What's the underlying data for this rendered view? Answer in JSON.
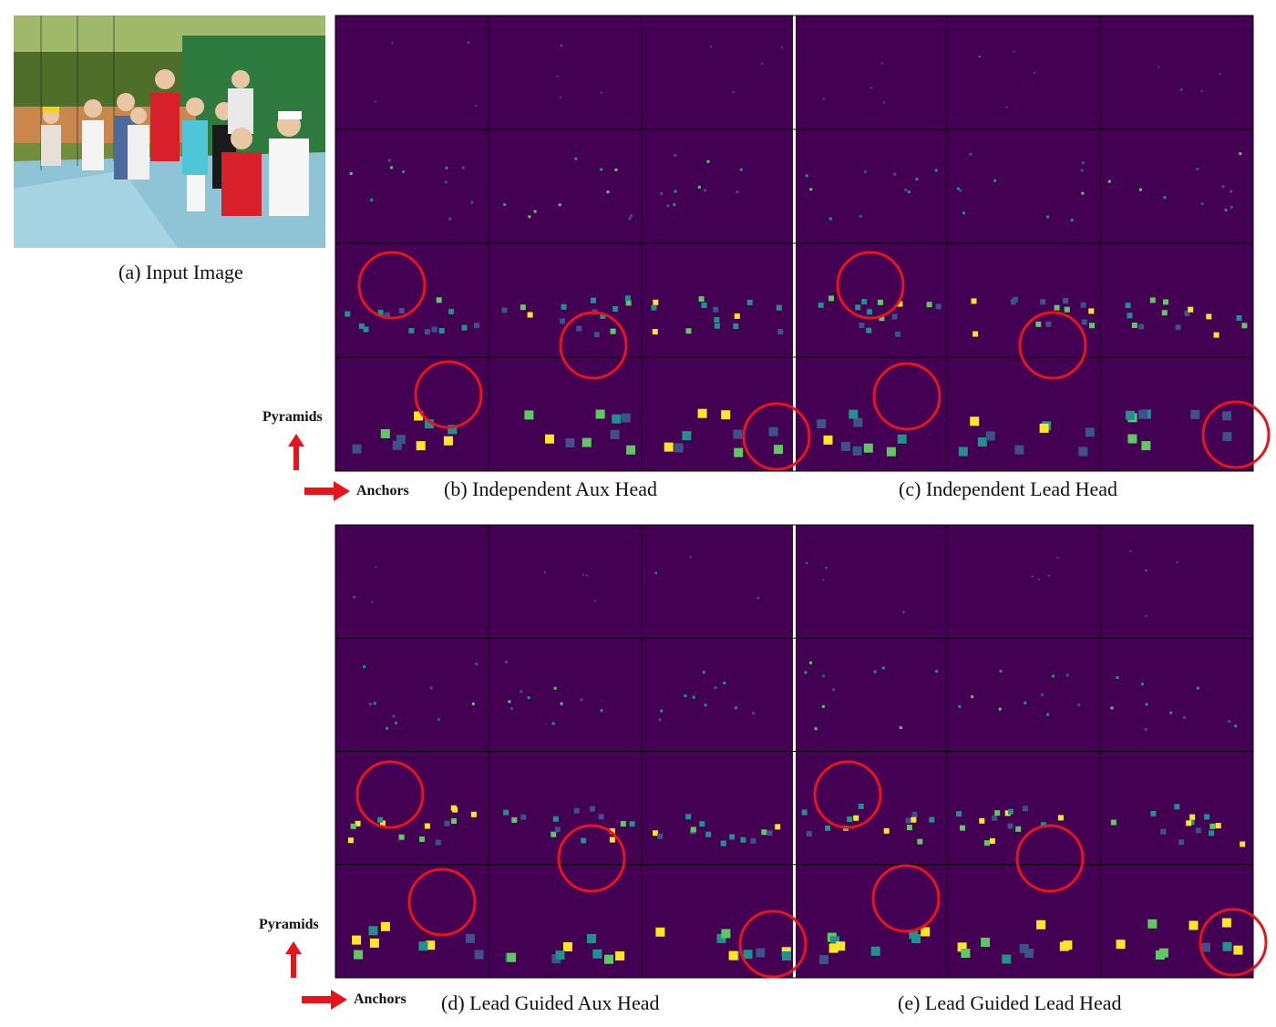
{
  "figure": {
    "input_caption": "(a) Input Image",
    "top": {
      "left_caption": "(b) Independent Aux Head",
      "right_caption": "(c) Independent Lead Head"
    },
    "bottom": {
      "left_caption": "(d) Lead Guided Aux Head",
      "right_caption": "(e) Lead Guided Lead Head"
    },
    "y_label": "Pyramids",
    "x_label": "Anchors",
    "colors": {
      "background": "#440154",
      "heat_low": "#3b528b",
      "heat_mid": "#21918c",
      "heat_high": "#5ec962",
      "heat_max": "#fde725",
      "highlight_circle": "#e8141b",
      "arrow": "#e8141b",
      "separator": "#ffffff"
    },
    "grid": {
      "head_groups": 2,
      "anchors_per_group": 3,
      "pyramid_levels": 4
    }
  }
}
